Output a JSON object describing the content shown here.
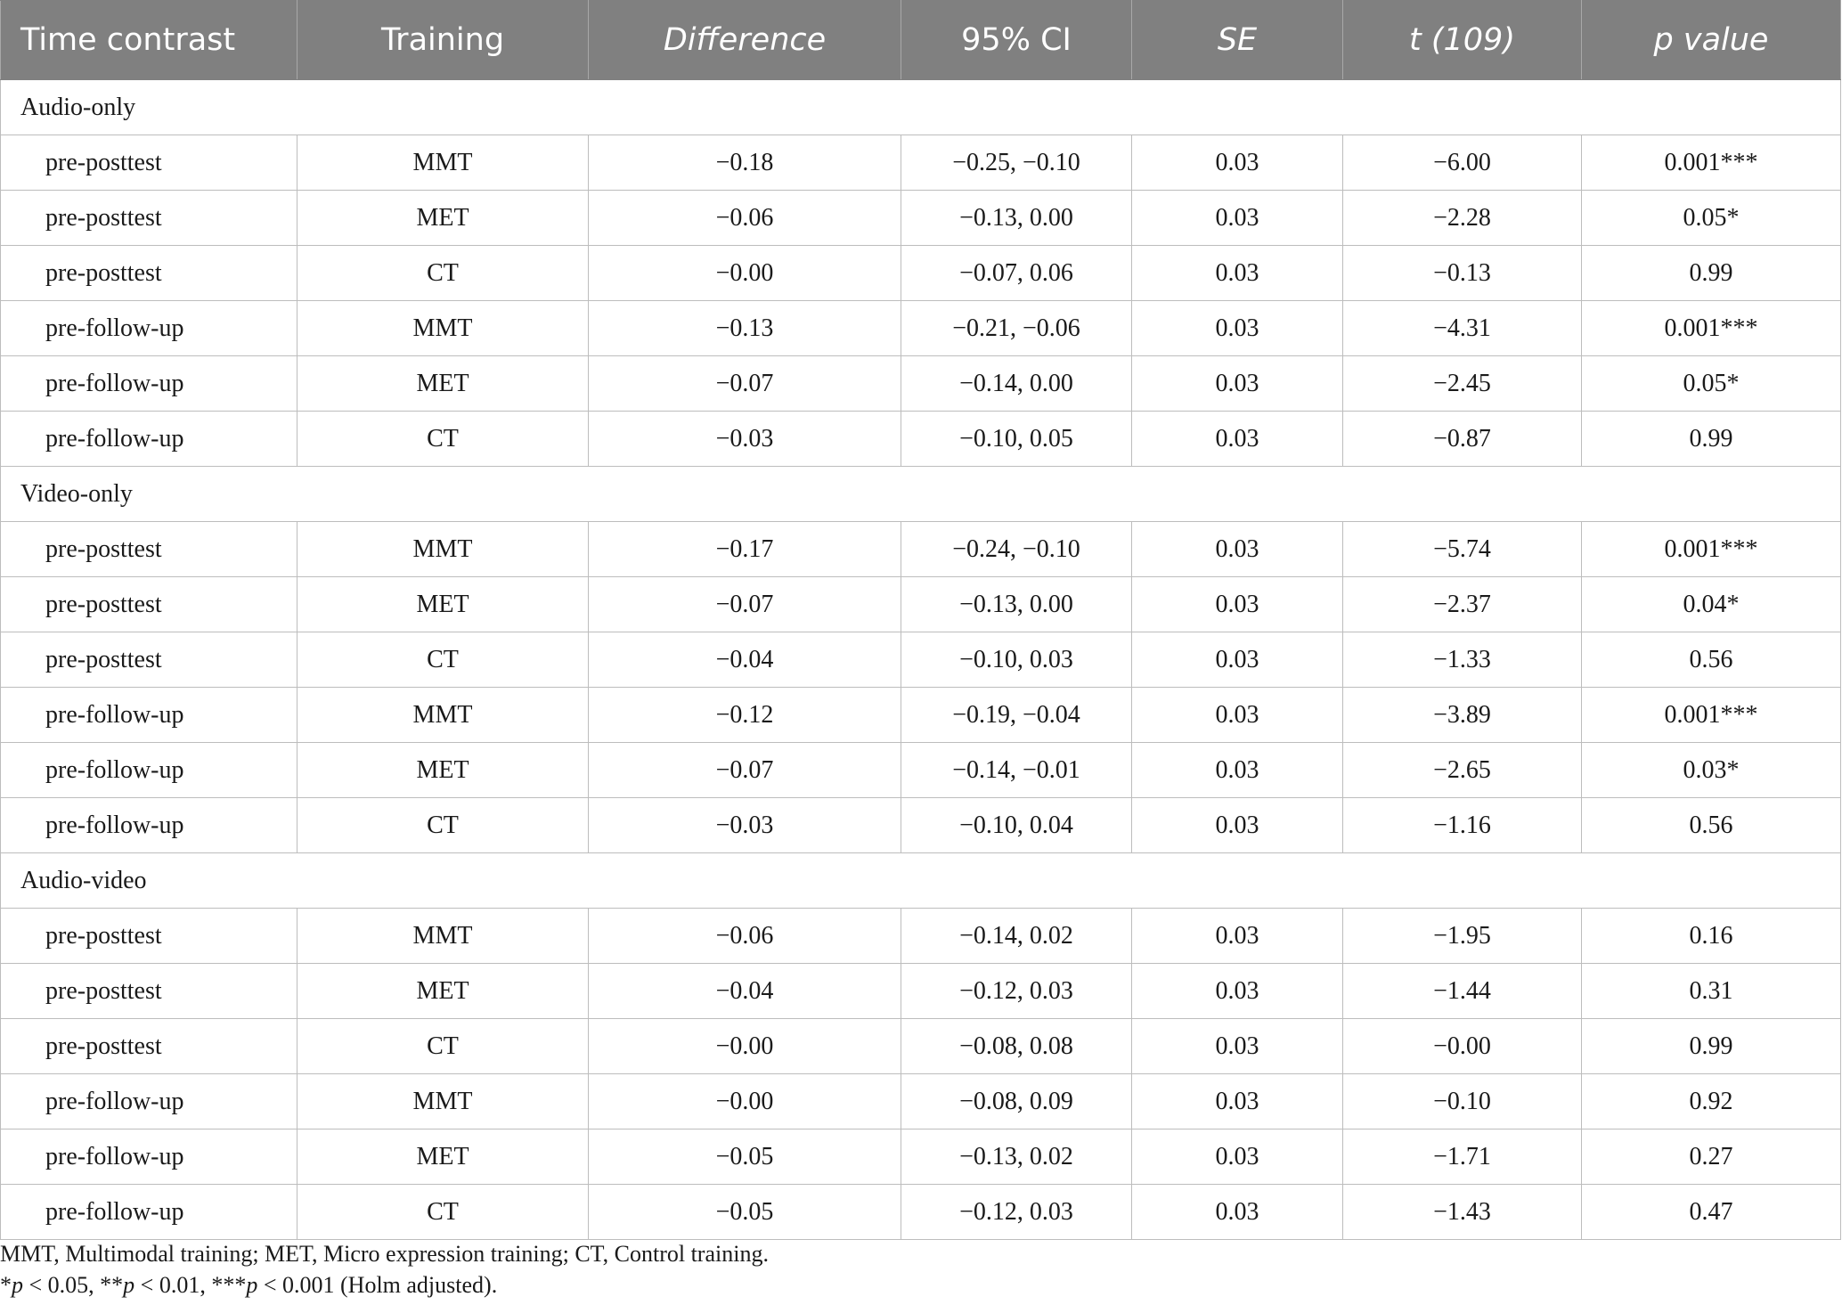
{
  "table": {
    "headers": [
      "Time contrast",
      "Training",
      "Difference",
      "95% CI",
      "SE",
      "t (109)",
      "p value"
    ],
    "groups": [
      {
        "name": "Audio-only",
        "rows": [
          [
            "pre-posttest",
            "MMT",
            "−0.18",
            "−0.25, −0.10",
            "0.03",
            "−6.00",
            "0.001***"
          ],
          [
            "pre-posttest",
            "MET",
            "−0.06",
            "−0.13, 0.00",
            "0.03",
            "−2.28",
            "0.05*"
          ],
          [
            "pre-posttest",
            "CT",
            "−0.00",
            "−0.07, 0.06",
            "0.03",
            "−0.13",
            "0.99"
          ],
          [
            "pre-follow-up",
            "MMT",
            "−0.13",
            "−0.21, −0.06",
            "0.03",
            "−4.31",
            "0.001***"
          ],
          [
            "pre-follow-up",
            "MET",
            "−0.07",
            "−0.14, 0.00",
            "0.03",
            "−2.45",
            "0.05*"
          ],
          [
            "pre-follow-up",
            "CT",
            "−0.03",
            "−0.10, 0.05",
            "0.03",
            "−0.87",
            "0.99"
          ]
        ]
      },
      {
        "name": "Video-only",
        "rows": [
          [
            "pre-posttest",
            "MMT",
            "−0.17",
            "−0.24, −0.10",
            "0.03",
            "−5.74",
            "0.001***"
          ],
          [
            "pre-posttest",
            "MET",
            "−0.07",
            "−0.13, 0.00",
            "0.03",
            "−2.37",
            "0.04*"
          ],
          [
            "pre-posttest",
            "CT",
            "−0.04",
            "−0.10, 0.03",
            "0.03",
            "−1.33",
            "0.56"
          ],
          [
            "pre-follow-up",
            "MMT",
            "−0.12",
            "−0.19, −0.04",
            "0.03",
            "−3.89",
            "0.001***"
          ],
          [
            "pre-follow-up",
            "MET",
            "−0.07",
            "−0.14, −0.01",
            "0.03",
            "−2.65",
            "0.03*"
          ],
          [
            "pre-follow-up",
            "CT",
            "−0.03",
            "−0.10, 0.04",
            "0.03",
            "−1.16",
            "0.56"
          ]
        ]
      },
      {
        "name": "Audio-video",
        "rows": [
          [
            "pre-posttest",
            "MMT",
            "−0.06",
            "−0.14, 0.02",
            "0.03",
            "−1.95",
            "0.16"
          ],
          [
            "pre-posttest",
            "MET",
            "−0.04",
            "−0.12, 0.03",
            "0.03",
            "−1.44",
            "0.31"
          ],
          [
            "pre-posttest",
            "CT",
            "−0.00",
            "−0.08, 0.08",
            "0.03",
            "−0.00",
            "0.99"
          ],
          [
            "pre-follow-up",
            "MMT",
            "−0.00",
            "−0.08, 0.09",
            "0.03",
            "−0.10",
            "0.92"
          ],
          [
            "pre-follow-up",
            "MET",
            "−0.05",
            "−0.13, 0.02",
            "0.03",
            "−1.71",
            "0.27"
          ],
          [
            "pre-follow-up",
            "CT",
            "−0.05",
            "−0.12, 0.03",
            "0.03",
            "−1.43",
            "0.47"
          ]
        ]
      }
    ]
  },
  "footnotes": {
    "abbreviations": "MMT, Multimodal training; MET, Micro expression training; CT, Control training.",
    "significance": {
      "p1_prefix": "*",
      "p1_rest": " < 0.05, **",
      "p2_rest": " < 0.01, ***",
      "p3_rest": " < 0.001 (Holm adjusted).",
      "p_symbol": "p"
    }
  }
}
